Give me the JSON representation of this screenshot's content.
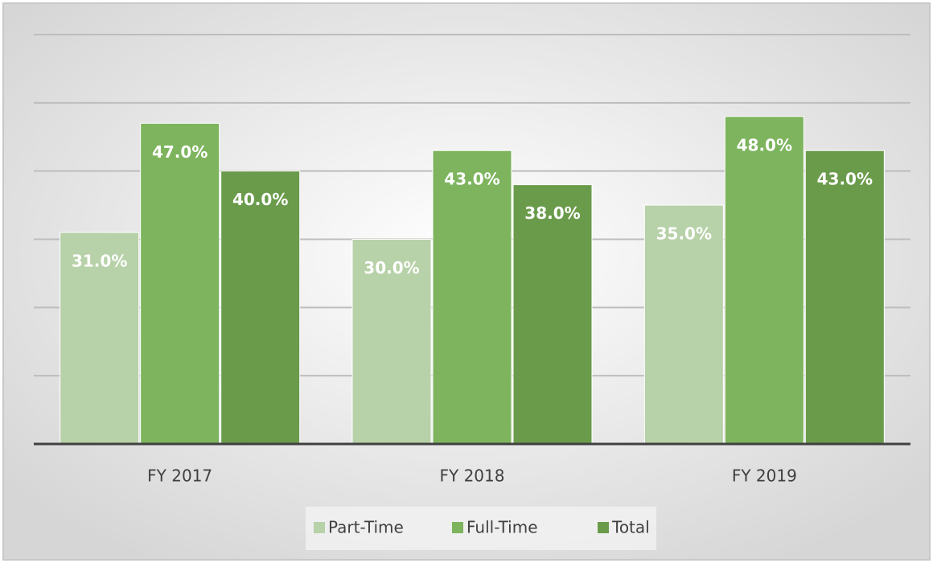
{
  "chart_data": {
    "type": "bar",
    "categories": [
      "FY 2017",
      "FY 2018",
      "FY 2019"
    ],
    "series": [
      {
        "name": "Part-Time",
        "color": "#b7d1a8",
        "values": [
          31,
          30,
          35
        ],
        "value_labels": [
          "31.0%",
          "30.0%",
          "35.0%"
        ]
      },
      {
        "name": "Full-Time",
        "color": "#7db45d",
        "values": [
          47,
          43,
          48
        ],
        "value_labels": [
          "47.0%",
          "43.0%",
          "48.0%"
        ]
      },
      {
        "name": "Total",
        "color": "#6a9b4b",
        "values": [
          40,
          38,
          43
        ],
        "value_labels": [
          "40.0%",
          "38.0%",
          "43.0%"
        ]
      }
    ],
    "ylim": [
      0,
      60
    ],
    "yticks": [
      0,
      10,
      20,
      30,
      40,
      50,
      60
    ],
    "grid": true,
    "legend": "bottom"
  }
}
